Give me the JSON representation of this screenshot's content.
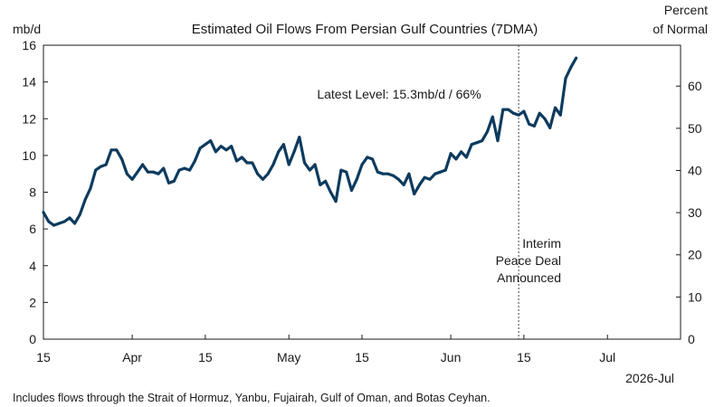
{
  "chart_data": {
    "type": "line",
    "title": "Estimated Oil Flows From Persian Gulf Countries (7DMA)",
    "ylabel_left": "mb/d",
    "ylabel_right": [
      "Percent",
      "of Normal"
    ],
    "ylim_left": [
      0,
      16
    ],
    "yticks_left": [
      0,
      2,
      4,
      6,
      8,
      10,
      12,
      14,
      16
    ],
    "ylim_right": [
      0,
      69.7
    ],
    "yticks_right": [
      0,
      10,
      20,
      30,
      40,
      50,
      60
    ],
    "xlim": [
      "2026-03-15",
      "2026-07-15"
    ],
    "xticks": [
      {
        "date": "2026-03-15",
        "label": "15"
      },
      {
        "date": "2026-04-01",
        "label": "Apr"
      },
      {
        "date": "2026-04-15",
        "label": "15"
      },
      {
        "date": "2026-05-01",
        "label": "May"
      },
      {
        "date": "2026-05-15",
        "label": "15"
      },
      {
        "date": "2026-06-01",
        "label": "Jun"
      },
      {
        "date": "2026-06-15",
        "label": "15"
      },
      {
        "date": "2026-07-01",
        "label": "Jul"
      }
    ],
    "year_label": "2026-Jul",
    "series": [
      {
        "color": "#0d3b5e",
        "x": [
          "2026-03-15",
          "2026-03-16",
          "2026-03-17",
          "2026-03-18",
          "2026-03-19",
          "2026-03-20",
          "2026-03-21",
          "2026-03-22",
          "2026-03-23",
          "2026-03-24",
          "2026-03-25",
          "2026-03-26",
          "2026-03-27",
          "2026-03-28",
          "2026-03-29",
          "2026-03-30",
          "2026-03-31",
          "2026-04-01",
          "2026-04-02",
          "2026-04-03",
          "2026-04-04",
          "2026-04-05",
          "2026-04-06",
          "2026-04-07",
          "2026-04-08",
          "2026-04-09",
          "2026-04-10",
          "2026-04-11",
          "2026-04-12",
          "2026-04-13",
          "2026-04-14",
          "2026-04-15",
          "2026-04-16",
          "2026-04-17",
          "2026-04-18",
          "2026-04-19",
          "2026-04-20",
          "2026-04-21",
          "2026-04-22",
          "2026-04-23",
          "2026-04-24",
          "2026-04-25",
          "2026-04-26",
          "2026-04-27",
          "2026-04-28",
          "2026-04-29",
          "2026-04-30",
          "2026-05-01",
          "2026-05-02",
          "2026-05-03",
          "2026-05-04",
          "2026-05-05",
          "2026-05-06",
          "2026-05-07",
          "2026-05-08",
          "2026-05-09",
          "2026-05-10",
          "2026-05-11",
          "2026-05-12",
          "2026-05-13",
          "2026-05-14",
          "2026-05-15",
          "2026-05-16",
          "2026-05-17",
          "2026-05-18",
          "2026-05-19",
          "2026-05-20",
          "2026-05-21",
          "2026-05-22",
          "2026-05-23",
          "2026-05-24",
          "2026-05-25",
          "2026-05-26",
          "2026-05-27",
          "2026-05-28",
          "2026-05-29",
          "2026-05-30",
          "2026-05-31",
          "2026-06-01",
          "2026-06-02",
          "2026-06-03",
          "2026-06-04",
          "2026-06-05",
          "2026-06-06",
          "2026-06-07",
          "2026-06-08",
          "2026-06-09",
          "2026-06-10",
          "2026-06-11",
          "2026-06-12",
          "2026-06-13",
          "2026-06-14",
          "2026-06-15",
          "2026-06-16",
          "2026-06-17",
          "2026-06-18",
          "2026-06-19",
          "2026-06-20",
          "2026-06-21",
          "2026-06-22",
          "2026-06-23",
          "2026-06-24",
          "2026-06-25"
        ],
        "values": [
          6.9,
          6.4,
          6.2,
          6.3,
          6.4,
          6.6,
          6.3,
          6.8,
          7.6,
          8.2,
          9.2,
          9.4,
          9.5,
          10.3,
          10.3,
          9.8,
          9.0,
          8.7,
          9.1,
          9.5,
          9.1,
          9.1,
          9.0,
          9.3,
          8.5,
          8.6,
          9.2,
          9.3,
          9.2,
          9.7,
          10.4,
          10.6,
          10.8,
          10.2,
          10.5,
          10.3,
          10.5,
          9.7,
          9.9,
          9.6,
          9.6,
          9.0,
          8.7,
          9.0,
          9.5,
          10.2,
          10.6,
          9.5,
          10.2,
          11.0,
          9.6,
          9.2,
          9.5,
          8.4,
          8.6,
          8.0,
          7.5,
          9.2,
          9.1,
          8.1,
          8.7,
          9.5,
          9.9,
          9.8,
          9.1,
          9.0,
          9.0,
          8.9,
          8.7,
          8.4,
          9.0,
          7.9,
          8.4,
          8.8,
          8.7,
          9.0,
          9.1,
          9.2,
          10.1,
          9.8,
          10.2,
          9.9,
          10.6,
          10.7,
          10.8,
          11.3,
          12.1,
          10.8,
          12.5,
          12.5,
          12.3,
          12.2,
          12.4,
          11.7,
          11.6,
          12.3,
          12.0,
          11.5,
          12.6,
          12.2,
          14.2,
          14.8,
          15.3
        ]
      }
    ],
    "vline": {
      "date": "2026-06-14",
      "style": "dotted"
    },
    "annotations": [
      {
        "id": "latest",
        "text": "Latest Level: 15.3mb/d / 66%"
      },
      {
        "id": "deal",
        "lines": [
          "Interim",
          "Peace Deal",
          "Announced"
        ]
      }
    ],
    "footnote": "Includes flows through the Strait of Hormuz, Yanbu, Fujairah, Gulf of Oman, and Botas Ceyhan.",
    "grid": false,
    "legend": "none"
  }
}
